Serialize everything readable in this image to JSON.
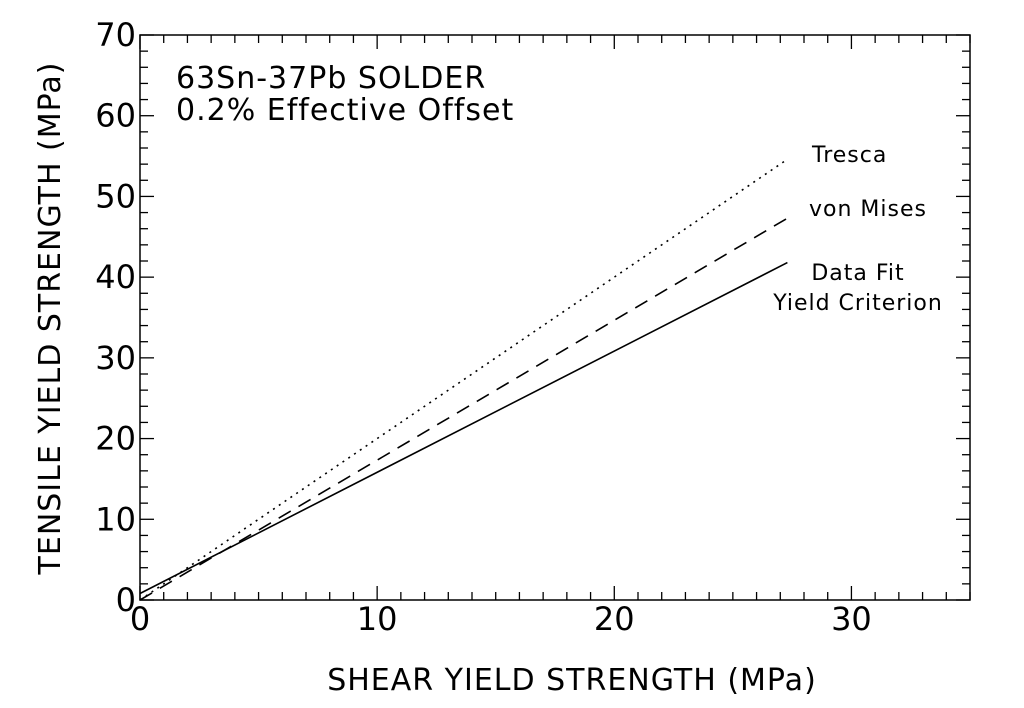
{
  "chart_data": {
    "type": "line",
    "title": "63Sn-37Pb SOLDER",
    "subtitle": "0.2% Effective Offset",
    "xlabel": "SHEAR YIELD STRENGTH (MPa)",
    "ylabel": "TENSILE YIELD STRENGTH (MPa)",
    "xlim": [
      0,
      35
    ],
    "ylim": [
      0,
      70
    ],
    "x_ticks": [
      0,
      10,
      20,
      30
    ],
    "y_ticks": [
      0,
      10,
      20,
      30,
      40,
      50,
      60,
      70
    ],
    "x_tick_labels": [
      "0",
      "10",
      "20",
      "30"
    ],
    "y_tick_labels": [
      "0",
      "10",
      "20",
      "30",
      "40",
      "50",
      "60",
      "70"
    ],
    "grid": false,
    "legend": "inline",
    "series": [
      {
        "label_lines": [
          "Tresca"
        ],
        "style": "dotted",
        "x": [
          0,
          27.3
        ],
        "y": [
          0,
          54.6
        ]
      },
      {
        "label_lines": [
          "von Mises"
        ],
        "style": "dashed",
        "x": [
          0,
          27.3
        ],
        "y": [
          0,
          47.3
        ]
      },
      {
        "label_lines": [
          "Data Fit",
          "Yield Criterion"
        ],
        "style": "solid",
        "x": [
          0,
          27.3
        ],
        "y": [
          0.8,
          41.8
        ]
      }
    ]
  }
}
